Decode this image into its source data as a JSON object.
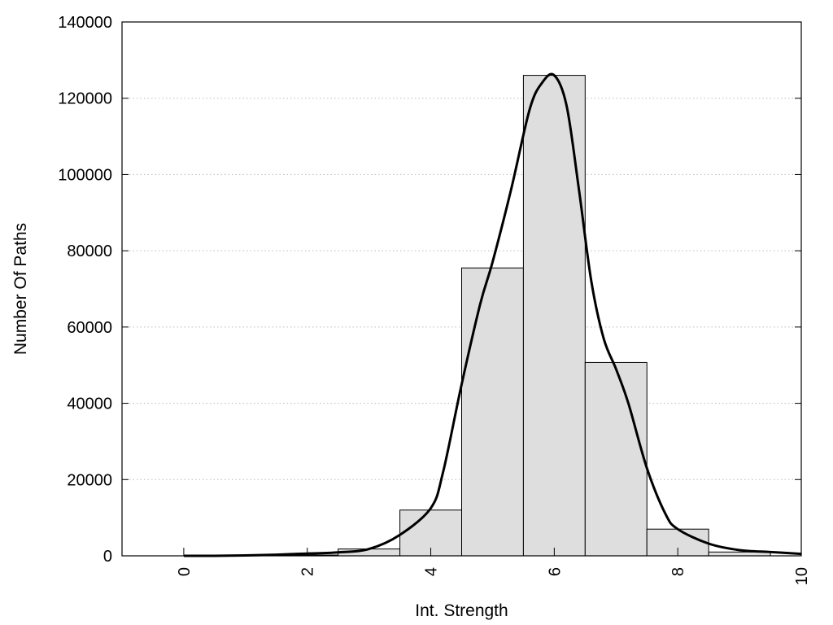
{
  "chart_data": {
    "type": "bar",
    "title": "",
    "xlabel": "Int. Strength",
    "ylabel": "Number Of Paths",
    "xlim": [
      -1,
      10
    ],
    "ylim": [
      0,
      140000
    ],
    "x_ticks": [
      0,
      2,
      4,
      6,
      8,
      10
    ],
    "y_ticks": [
      0,
      20000,
      40000,
      60000,
      80000,
      100000,
      120000,
      140000
    ],
    "grid": "horizontal dotted",
    "legend": "none",
    "bar_width": 1,
    "bars": [
      {
        "x": 0,
        "value": 0
      },
      {
        "x": 1,
        "value": 0
      },
      {
        "x": 2,
        "value": 200
      },
      {
        "x": 3,
        "value": 1800
      },
      {
        "x": 4,
        "value": 12000
      },
      {
        "x": 5,
        "value": 75500
      },
      {
        "x": 6,
        "value": 126000
      },
      {
        "x": 7,
        "value": 50700
      },
      {
        "x": 8,
        "value": 7000
      },
      {
        "x": 9,
        "value": 1000
      }
    ],
    "curve": {
      "x": [
        0,
        0.5,
        1,
        1.5,
        2,
        2.5,
        3,
        3.5,
        4,
        4.2,
        4.5,
        4.8,
        5,
        5.3,
        5.6,
        5.8,
        6,
        6.2,
        6.4,
        6.6,
        6.8,
        7,
        7.2,
        7.5,
        7.8,
        8,
        8.5,
        9,
        9.5,
        10
      ],
      "y": [
        0,
        0,
        100,
        300,
        600,
        900,
        1800,
        5500,
        12500,
        22000,
        45000,
        66000,
        77000,
        96000,
        117000,
        124000,
        126000,
        118000,
        96000,
        72000,
        57000,
        49000,
        40000,
        23000,
        11000,
        7000,
        3200,
        1500,
        1000,
        500
      ]
    },
    "colors": {
      "bar_fill": "#dedede",
      "bar_stroke": "#000000",
      "curve": "#000000",
      "grid": "#bbbbbb"
    }
  }
}
